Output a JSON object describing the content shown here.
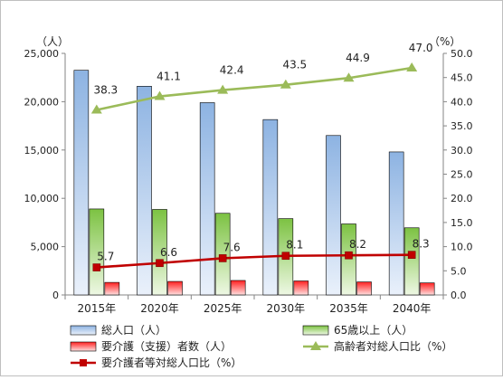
{
  "chart_data": {
    "type": "bar",
    "categories": [
      "2015年",
      "2020年",
      "2025年",
      "2030年",
      "2035年",
      "2040年"
    ],
    "left_axis": {
      "unit_label": "（人）",
      "ylim": [
        0,
        25000
      ],
      "ticks": [
        "0",
        "5,000",
        "10,000",
        "15,000",
        "20,000",
        "25,000"
      ]
    },
    "right_axis": {
      "unit_label": "（%）",
      "ylim": [
        0,
        50
      ],
      "ticks": [
        "0.0",
        "5.0",
        "10.0",
        "15.0",
        "20.0",
        "25.0",
        "30.0",
        "35.0",
        "40.0",
        "45.0",
        "50.0"
      ]
    },
    "series": [
      {
        "name": "総人口（人）",
        "kind": "bar",
        "axis": "left",
        "color": "#8db3e2",
        "values": [
          23250,
          21600,
          19900,
          18150,
          16500,
          14800
        ]
      },
      {
        "name": "65歳以上（人）",
        "kind": "bar",
        "axis": "left",
        "color": "#92d050",
        "values": [
          8900,
          8850,
          8450,
          7900,
          7350,
          6950
        ]
      },
      {
        "name": "要介護（支援）者数（人）",
        "kind": "bar",
        "axis": "left",
        "color": "#ff3b3b",
        "values": [
          1300,
          1400,
          1500,
          1450,
          1350,
          1250
        ]
      },
      {
        "name": "高齢者対総人口比（%）",
        "kind": "line",
        "axis": "right",
        "color": "#9bbb59",
        "marker": "triangle",
        "values": [
          38.3,
          41.1,
          42.4,
          43.5,
          44.9,
          47.0
        ],
        "labels": [
          "38.3",
          "41.1",
          "42.4",
          "43.5",
          "44.9",
          "47.0"
        ]
      },
      {
        "name": "要介護者等対総人口比（%）",
        "kind": "line",
        "axis": "right",
        "color": "#c00000",
        "marker": "square",
        "values": [
          5.7,
          6.6,
          7.6,
          8.1,
          8.2,
          8.3
        ],
        "labels": [
          "5.7",
          "6.6",
          "7.6",
          "8.1",
          "8.2",
          "8.3"
        ]
      }
    ],
    "grid": false,
    "legend_position": "bottom"
  }
}
